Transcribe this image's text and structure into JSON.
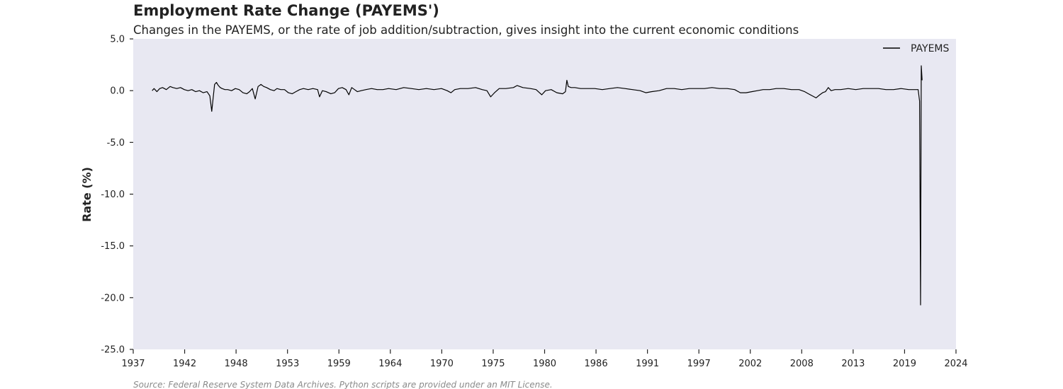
{
  "chart_data": {
    "type": "line",
    "title": "Employment Rate Change (PAYEMS')",
    "subtitle": "Changes in the PAYEMS, or the rate of job addition/subtraction, gives insight into the current economic conditions",
    "xlabel": "",
    "ylabel": "Rate (%)",
    "source": "Source: Federal Reserve System Data Archives. Python scripts are provided under an MIT License.",
    "xlim": [
      1937,
      2024
    ],
    "ylim": [
      -25.0,
      5.0
    ],
    "x_ticks": [
      "1937",
      "1942",
      "1948",
      "1953",
      "1959",
      "1964",
      "1970",
      "1975",
      "1980",
      "1986",
      "1991",
      "1997",
      "2002",
      "2008",
      "2013",
      "2019",
      "2024"
    ],
    "y_ticks": [
      "5.0",
      "0.0",
      "-5.0",
      "-10.0",
      "-15.0",
      "-20.0",
      "-25.0"
    ],
    "legend": {
      "position": "top-right",
      "entries": [
        "PAYEMS"
      ]
    },
    "grid": false,
    "background": "#e8e8f2",
    "series": [
      {
        "name": "PAYEMS",
        "color": "#000000",
        "x": [
          1939.0,
          1939.2,
          1939.5,
          1939.8,
          1940.1,
          1940.5,
          1940.9,
          1941.2,
          1941.6,
          1942.0,
          1942.4,
          1942.8,
          1943.2,
          1943.6,
          1944.0,
          1944.4,
          1944.8,
          1945.1,
          1945.3,
          1945.5,
          1945.6,
          1945.8,
          1946.0,
          1946.2,
          1946.4,
          1946.7,
          1947.0,
          1947.4,
          1947.8,
          1948.2,
          1948.6,
          1949.0,
          1949.3,
          1949.6,
          1949.9,
          1950.2,
          1950.5,
          1950.8,
          1951.1,
          1951.5,
          1951.9,
          1952.2,
          1952.6,
          1953.0,
          1953.4,
          1953.8,
          1954.2,
          1954.6,
          1955.0,
          1955.5,
          1956.0,
          1956.5,
          1956.7,
          1957.0,
          1957.4,
          1957.9,
          1958.3,
          1958.7,
          1959.1,
          1959.5,
          1959.8,
          1960.1,
          1960.4,
          1960.7,
          1961.1,
          1961.6,
          1962.2,
          1962.8,
          1963.4,
          1964.0,
          1964.8,
          1965.6,
          1966.4,
          1967.2,
          1968.0,
          1968.8,
          1969.6,
          1970.2,
          1970.6,
          1971.0,
          1971.6,
          1972.4,
          1973.2,
          1973.9,
          1974.4,
          1974.8,
          1975.2,
          1975.7,
          1976.4,
          1977.2,
          1977.6,
          1978.2,
          1979.0,
          1979.6,
          1980.2,
          1980.6,
          1981.2,
          1981.8,
          1982.4,
          1982.7,
          1982.85,
          1983.0,
          1983.3,
          1983.7,
          1984.3,
          1985.0,
          1985.8,
          1986.6,
          1987.4,
          1988.2,
          1989.0,
          1989.8,
          1990.6,
          1991.2,
          1991.8,
          1992.6,
          1993.4,
          1994.2,
          1995.0,
          1995.8,
          1996.6,
          1997.4,
          1998.2,
          1999.0,
          1999.8,
          2000.6,
          2001.2,
          2001.8,
          2002.4,
          2003.0,
          2003.6,
          2004.3,
          2005.0,
          2005.8,
          2006.6,
          2007.4,
          2008.0,
          2008.4,
          2008.8,
          2009.2,
          2009.6,
          2009.9,
          2010.2,
          2010.5,
          2010.8,
          2011.2,
          2011.8,
          2012.6,
          2013.4,
          2014.2,
          2015.0,
          2015.8,
          2016.6,
          2017.4,
          2018.2,
          2019.0,
          2019.6,
          2020.0,
          2020.15,
          2020.25,
          2020.33,
          2020.42
        ],
        "values": [
          0.0,
          0.2,
          -0.1,
          0.2,
          0.3,
          0.1,
          0.4,
          0.3,
          0.2,
          0.3,
          0.1,
          0.0,
          0.1,
          -0.1,
          0.0,
          -0.2,
          -0.1,
          -0.5,
          -2.0,
          -0.3,
          0.6,
          0.8,
          0.5,
          0.3,
          0.2,
          0.1,
          0.1,
          0.0,
          0.2,
          0.1,
          -0.2,
          -0.3,
          -0.1,
          0.2,
          -0.8,
          0.4,
          0.6,
          0.4,
          0.3,
          0.1,
          0.0,
          0.2,
          0.1,
          0.1,
          -0.2,
          -0.3,
          -0.1,
          0.1,
          0.2,
          0.1,
          0.2,
          0.1,
          -0.6,
          0.0,
          -0.1,
          -0.3,
          -0.2,
          0.2,
          0.3,
          0.1,
          -0.4,
          0.3,
          0.1,
          -0.1,
          0.0,
          0.1,
          0.2,
          0.1,
          0.1,
          0.2,
          0.1,
          0.3,
          0.2,
          0.1,
          0.2,
          0.1,
          0.2,
          0.0,
          -0.2,
          0.1,
          0.2,
          0.2,
          0.3,
          0.1,
          0.0,
          -0.6,
          -0.2,
          0.2,
          0.2,
          0.3,
          0.5,
          0.3,
          0.2,
          0.1,
          -0.4,
          0.0,
          0.1,
          -0.2,
          -0.3,
          -0.1,
          1.0,
          0.4,
          0.3,
          0.3,
          0.2,
          0.2,
          0.2,
          0.1,
          0.2,
          0.3,
          0.2,
          0.1,
          0.0,
          -0.2,
          -0.1,
          0.0,
          0.2,
          0.2,
          0.1,
          0.2,
          0.2,
          0.2,
          0.3,
          0.2,
          0.2,
          0.1,
          -0.2,
          -0.2,
          -0.1,
          0.0,
          0.1,
          0.1,
          0.2,
          0.2,
          0.1,
          0.1,
          -0.1,
          -0.3,
          -0.5,
          -0.7,
          -0.4,
          -0.2,
          -0.1,
          0.3,
          0.0,
          0.1,
          0.1,
          0.2,
          0.1,
          0.2,
          0.2,
          0.2,
          0.1,
          0.1,
          0.2,
          0.1,
          0.1,
          0.1,
          -1.0,
          -20.7,
          2.4,
          1.0
        ]
      }
    ]
  }
}
